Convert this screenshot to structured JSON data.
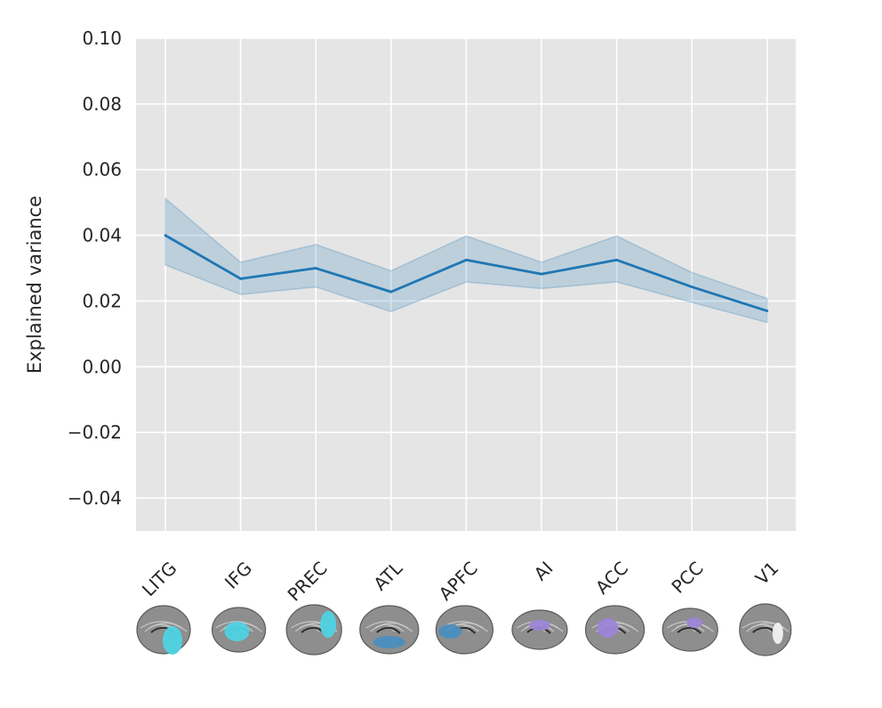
{
  "chart_data": {
    "type": "line",
    "title": "",
    "xlabel": "",
    "ylabel": "Explained variance",
    "ylim": [
      -0.05,
      0.1
    ],
    "yticks": [
      -0.04,
      -0.02,
      0.0,
      0.02,
      0.04,
      0.06,
      0.08,
      0.1
    ],
    "ytick_labels": [
      "−0.04",
      "−0.02",
      "0.00",
      "0.02",
      "0.04",
      "0.06",
      "0.08",
      "0.10"
    ],
    "categories": [
      "LITG",
      "IFG",
      "PREC",
      "ATL",
      "APFC",
      "AI",
      "ACC",
      "PCC",
      "V1"
    ],
    "series": [
      {
        "values": [
          0.04,
          0.0268,
          0.03,
          0.0228,
          0.0325,
          0.0282,
          0.0325,
          0.0243,
          0.017
        ],
        "lower": [
          0.031,
          0.022,
          0.0243,
          0.0168,
          0.0258,
          0.0238,
          0.0258,
          0.0196,
          0.0135
        ],
        "upper": [
          0.0512,
          0.0318,
          0.0372,
          0.0292,
          0.0398,
          0.0318,
          0.0398,
          0.0287,
          0.0208
        ],
        "color": "#1f77b4",
        "band_color": "#1f77b4"
      }
    ],
    "grid": true,
    "legend": "none",
    "region_highlight_colors": {
      "LITG": "#4fd3e3",
      "IFG": "#4fd3e3",
      "PREC": "#4fd3e3",
      "ATL": "#4a8fbf",
      "APFC": "#4a8fbf",
      "AI": "#9b86d6",
      "ACC": "#9b86d6",
      "PCC": "#9b86d6",
      "V1": "#f2f2f2"
    }
  },
  "theme": {
    "plot_bg": "#e5e5e5",
    "grid": "#ffffff",
    "text": "#262626"
  }
}
